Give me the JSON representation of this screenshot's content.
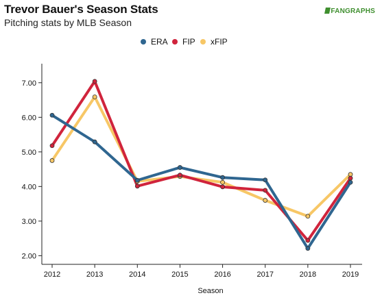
{
  "header": {
    "title": "Trevor Bauer's Season Stats",
    "subtitle": "Pitching stats by MLB Season",
    "logo_text": "FANGRAPHS"
  },
  "colors": {
    "ERA": "#2f6690",
    "FIP": "#d0243c",
    "xFIP": "#f7c766",
    "logo": "#3f8f2f"
  },
  "chart_data": {
    "type": "line",
    "title": "Trevor Bauer's Season Stats",
    "subtitle": "Pitching stats by MLB Season",
    "xlabel": "Season",
    "ylabel": "",
    "categories": [
      "2012",
      "2013",
      "2014",
      "2015",
      "2016",
      "2017",
      "2018",
      "2019"
    ],
    "ylim": [
      1.75,
      7.55
    ],
    "yticks": [
      "2.00",
      "3.00",
      "4.00",
      "5.00",
      "6.00",
      "7.00"
    ],
    "legend_position": "top-center",
    "grid": false,
    "series": [
      {
        "name": "ERA",
        "values": [
          6.06,
          5.29,
          4.18,
          4.55,
          4.26,
          4.19,
          2.21,
          4.12
        ]
      },
      {
        "name": "FIP",
        "values": [
          5.18,
          7.04,
          4.01,
          4.33,
          3.99,
          3.89,
          2.44,
          4.24
        ]
      },
      {
        "name": "xFIP",
        "values": [
          4.75,
          6.59,
          4.15,
          4.29,
          4.12,
          3.6,
          3.14,
          4.35
        ]
      }
    ]
  }
}
